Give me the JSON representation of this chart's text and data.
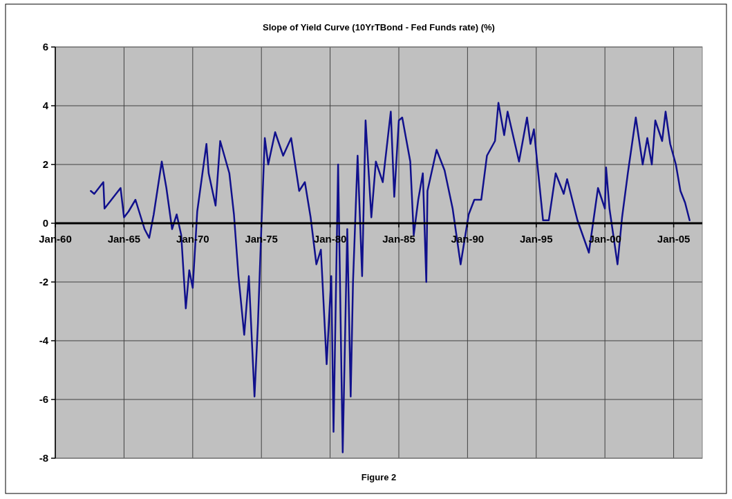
{
  "chart_data": {
    "type": "line",
    "title": "Slope of Yield Curve (10YrTBond - Fed Funds rate) (%)",
    "annotations": [
      "Figure 2"
    ],
    "xlim": [
      "1960-01",
      "2007-02"
    ],
    "xticks": [
      {
        "value": "1960-01",
        "label": "Jan-60"
      },
      {
        "value": "1965-01",
        "label": "Jan-65"
      },
      {
        "value": "1970-01",
        "label": "Jan-70"
      },
      {
        "value": "1975-01",
        "label": "Jan-75"
      },
      {
        "value": "1980-01",
        "label": "Jan-80"
      },
      {
        "value": "1985-01",
        "label": "Jan-85"
      },
      {
        "value": "1990-01",
        "label": "Jan-90"
      },
      {
        "value": "1995-01",
        "label": "Jan-95"
      },
      {
        "value": "2000-01",
        "label": "Jan-00"
      },
      {
        "value": "2005-01",
        "label": "Jan-05"
      }
    ],
    "ylim": [
      -8,
      6
    ],
    "yticks": [
      -8,
      -6,
      -4,
      -2,
      0,
      2,
      4,
      6
    ],
    "grid": true,
    "x": [
      "1962-08",
      "1962-11",
      "1963-07",
      "1963-08",
      "1964-02",
      "1964-10",
      "1965-01",
      "1965-05",
      "1965-11",
      "1966-07",
      "1966-11",
      "1967-03",
      "1967-10",
      "1968-02",
      "1968-07",
      "1968-11",
      "1969-03",
      "1969-07",
      "1969-10",
      "1970-01",
      "1970-05",
      "1971-01",
      "1971-03",
      "1971-09",
      "1972-01",
      "1972-09",
      "1973-01",
      "1973-05",
      "1973-10",
      "1974-02",
      "1974-07",
      "1974-10",
      "1975-01",
      "1975-04",
      "1975-07",
      "1976-01",
      "1976-08",
      "1977-03",
      "1977-10",
      "1978-03",
      "1978-08",
      "1979-01",
      "1979-05",
      "1979-10",
      "1980-02",
      "1980-04",
      "1980-08",
      "1980-12",
      "1981-04",
      "1981-07",
      "1981-09",
      "1982-01",
      "1982-05",
      "1982-08",
      "1983-01",
      "1983-05",
      "1983-11",
      "1984-06",
      "1984-09",
      "1985-01",
      "1985-04",
      "1985-11",
      "1986-02",
      "1986-06",
      "1986-10",
      "1987-01",
      "1987-02",
      "1987-10",
      "1988-05",
      "1988-12",
      "1989-07",
      "1990-02",
      "1990-07",
      "1991-01",
      "1991-06",
      "1992-01",
      "1992-04",
      "1992-09",
      "1992-12",
      "1993-10",
      "1994-05",
      "1994-08",
      "1994-11",
      "1995-02",
      "1995-07",
      "1995-12",
      "1996-06",
      "1997-01",
      "1997-04",
      "1998-01",
      "1998-11",
      "1999-07",
      "2000-01",
      "2000-02",
      "2000-05",
      "2000-12",
      "2001-04",
      "2001-09",
      "2002-04",
      "2002-10",
      "2003-02",
      "2003-06",
      "2003-09",
      "2004-03",
      "2004-06",
      "2004-10",
      "2005-03",
      "2005-07",
      "2005-11",
      "2006-03"
    ],
    "series": [
      {
        "color": "#10108c",
        "values": [
          1.1,
          1.0,
          1.4,
          0.5,
          0.8,
          1.2,
          0.2,
          0.4,
          0.8,
          -0.2,
          -0.5,
          0.3,
          2.1,
          1.2,
          -0.2,
          0.3,
          -0.4,
          -2.9,
          -1.6,
          -2.2,
          0.4,
          2.7,
          1.7,
          0.6,
          2.8,
          1.7,
          0.3,
          -1.8,
          -3.8,
          -1.8,
          -5.9,
          -3.4,
          -0.1,
          2.9,
          2.0,
          3.1,
          2.3,
          2.9,
          1.1,
          1.4,
          0.2,
          -1.4,
          -0.9,
          -4.8,
          -1.8,
          -7.1,
          2.0,
          -7.8,
          -0.2,
          -5.9,
          -2.0,
          2.3,
          -1.8,
          3.5,
          0.2,
          2.1,
          1.4,
          3.8,
          0.9,
          3.5,
          3.6,
          2.1,
          -0.4,
          0.8,
          1.7,
          -2.0,
          1.1,
          2.5,
          1.8,
          0.5,
          -1.4,
          0.3,
          0.8,
          0.8,
          2.3,
          2.8,
          4.1,
          3.0,
          3.8,
          2.1,
          3.6,
          2.7,
          3.2,
          2.0,
          0.1,
          0.1,
          1.7,
          1.0,
          1.5,
          0.1,
          -1.0,
          1.2,
          0.5,
          1.9,
          0.5,
          -1.4,
          0.2,
          1.7,
          3.6,
          2.0,
          2.9,
          2.0,
          3.5,
          2.8,
          3.8,
          2.7,
          2.0,
          1.1,
          0.7,
          0.1
        ]
      }
    ]
  }
}
